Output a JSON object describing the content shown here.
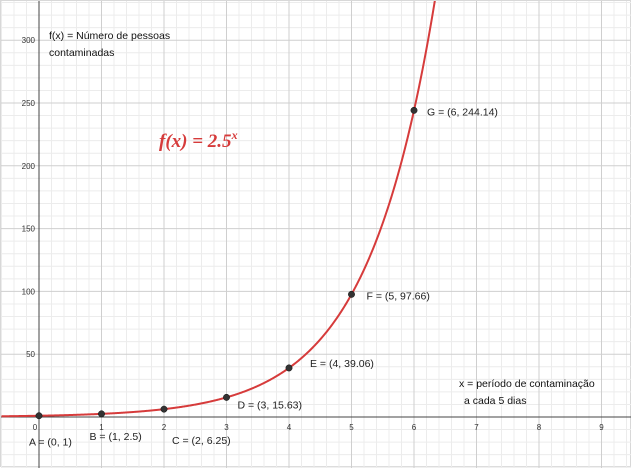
{
  "chart_data": {
    "type": "line",
    "function": "2.5^x",
    "formula_label": {
      "base": "f(x) = 2.5",
      "exponent": "x"
    },
    "xlim": [
      0,
      9
    ],
    "ylim": [
      0,
      300
    ],
    "x_ticks": [
      "0",
      "1",
      "2",
      "3",
      "4",
      "5",
      "6",
      "7",
      "8",
      "9"
    ],
    "y_ticks": [
      "50",
      "100",
      "150",
      "200",
      "250",
      "300"
    ],
    "y_axis_note": [
      "f(x) = Número de pessoas",
      "contaminadas"
    ],
    "x_axis_note": [
      "x = período de contaminação",
      "a cada 5 dias"
    ],
    "curve_color": "#d63b3b",
    "grid": true,
    "points": [
      {
        "x": 0,
        "y": 1,
        "label": "A = (0, 1)"
      },
      {
        "x": 1,
        "y": 2.5,
        "label": "B = (1, 2.5)"
      },
      {
        "x": 2,
        "y": 6.25,
        "label": "C = (2, 6.25)"
      },
      {
        "x": 3,
        "y": 15.63,
        "label": "D = (3, 15.63)"
      },
      {
        "x": 4,
        "y": 39.06,
        "label": "E = (4, 39.06)"
      },
      {
        "x": 5,
        "y": 97.66,
        "label": "F = (5, 97.66)"
      },
      {
        "x": 6,
        "y": 244.14,
        "label": "G = (6, 244.14)"
      }
    ]
  }
}
